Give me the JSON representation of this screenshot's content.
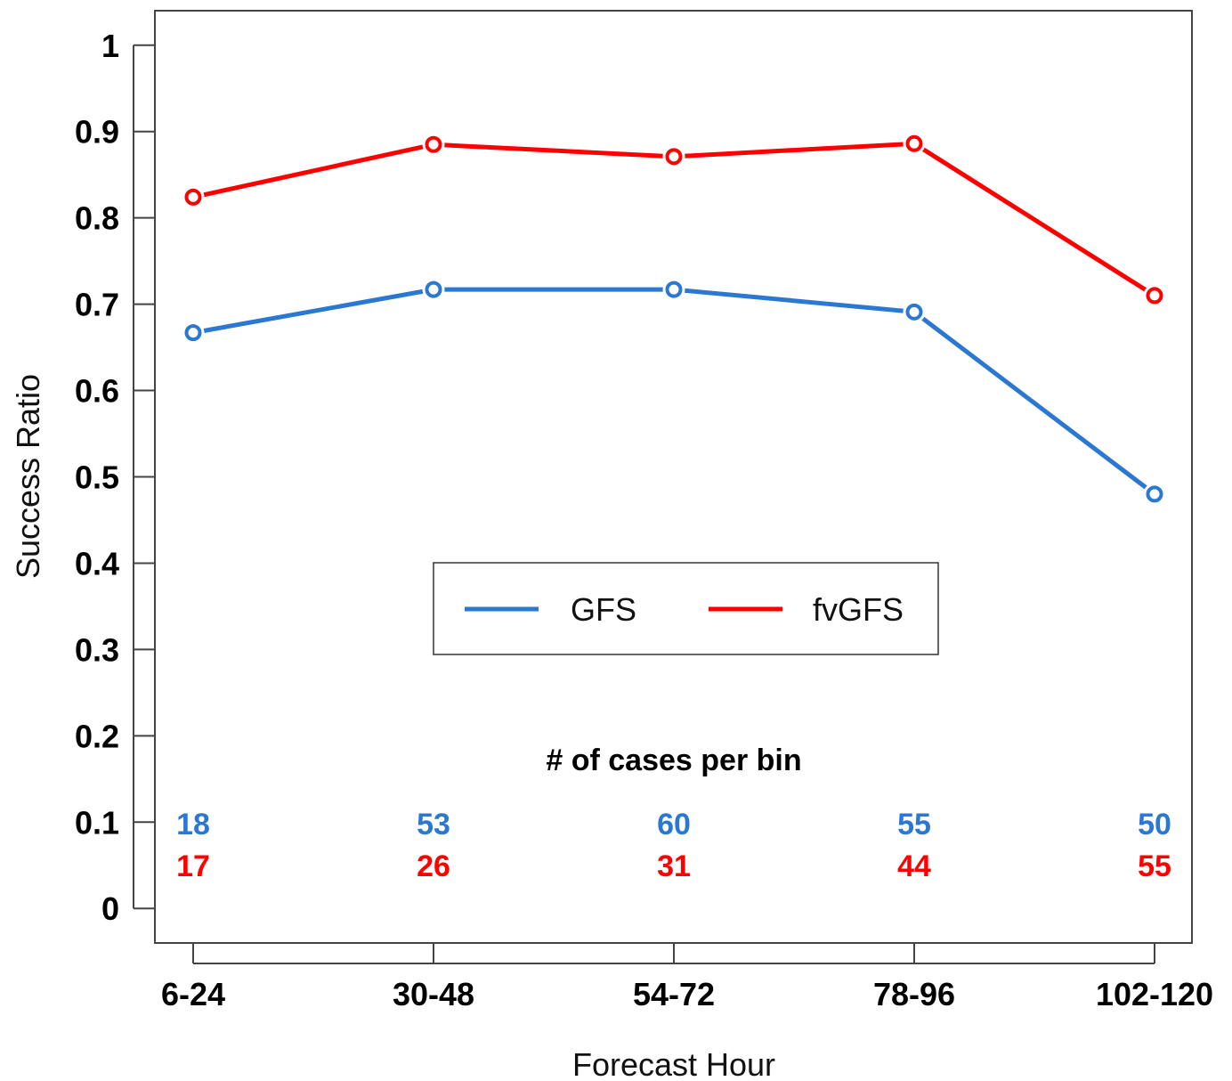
{
  "chart_data": {
    "type": "line",
    "xlabel": "Forecast Hour",
    "ylabel": "Success Ratio",
    "categories": [
      "6-24",
      "30-48",
      "54-72",
      "78-96",
      "102-120"
    ],
    "ylim": [
      -0.04,
      1.04
    ],
    "yticks": [
      0,
      0.1,
      0.2,
      0.3,
      0.4,
      0.5,
      0.6,
      0.7,
      0.8,
      0.9,
      1
    ],
    "ytick_labels": [
      "0",
      "0.1",
      "0.2",
      "0.3",
      "0.4",
      "0.5",
      "0.6",
      "0.7",
      "0.8",
      "0.9",
      "1"
    ],
    "grid": false,
    "legend_position": "center",
    "series": [
      {
        "name": "GFS",
        "color": "#2b78d3",
        "values": [
          0.667,
          0.717,
          0.717,
          0.691,
          0.48
        ]
      },
      {
        "name": "fvGFS",
        "color": "#ff0000",
        "values": [
          0.824,
          0.885,
          0.871,
          0.886,
          0.71
        ]
      }
    ],
    "annotation": {
      "title": "# of cases per bin",
      "counts": [
        {
          "series": "GFS",
          "color": "#2b78d3",
          "values": [
            "18",
            "53",
            "60",
            "55",
            "50"
          ]
        },
        {
          "series": "fvGFS",
          "color": "#ff0000",
          "values": [
            "17",
            "26",
            "31",
            "44",
            "55"
          ]
        }
      ]
    }
  }
}
